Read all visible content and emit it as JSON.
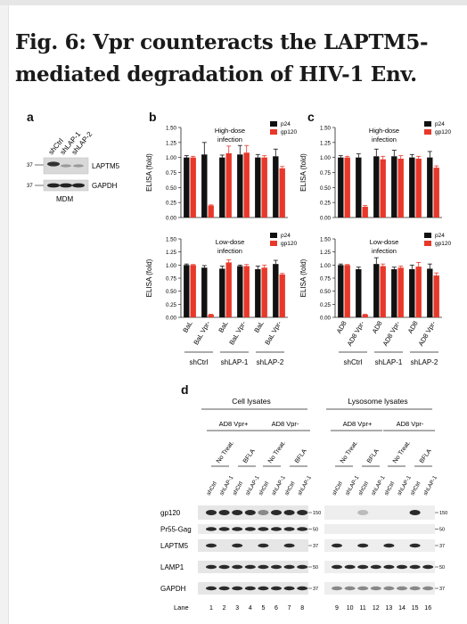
{
  "title": "Fig. 6: Vpr counteracts the LAPTM5-mediated degradation of HIV-1 Env.",
  "panels": {
    "a": {
      "label": "a",
      "lanes": [
        "shCtrl",
        "shLAP-1",
        "shLAP-2"
      ],
      "marker": "37",
      "rows": [
        "LAPTM5",
        "GAPDH"
      ],
      "cell": "MDM"
    },
    "b": {
      "label": "b"
    },
    "c": {
      "label": "c"
    },
    "d": {
      "label": "d",
      "groups": [
        "Cell lysates",
        "Lysosome lysates"
      ],
      "conditions": [
        "AD8 Vpr+",
        "AD8 Vpr-",
        "AD8 Vpr+",
        "AD8 Vpr-"
      ],
      "treatments": [
        "No Treat.",
        "BFLA",
        "No Treat.",
        "BFLA",
        "No Treat.",
        "BFLA",
        "No Treat.",
        "BFLA"
      ],
      "lanes": [
        "shCtrl",
        "shLAP-1",
        "shCtrl",
        "shLAP-1",
        "shCtrl",
        "shLAP-1",
        "shCtrl",
        "shLAP-1",
        "shCtrl",
        "shLAP-1",
        "shCtrl",
        "shLAP-1",
        "shCtrl",
        "shLAP-1",
        "shCtrl",
        "shLAP-1"
      ],
      "rows": [
        "gp120",
        "Pr55-Gag",
        "LAPTM5",
        "LAMP1",
        "GAPDH"
      ],
      "markers": [
        "150",
        "50",
        "37",
        "50",
        "37"
      ],
      "lane_label": "Lane",
      "lane_numbers": [
        "1",
        "2",
        "3",
        "4",
        "5",
        "6",
        "7",
        "8",
        "9",
        "10",
        "11",
        "12",
        "13",
        "14",
        "15",
        "16"
      ]
    }
  },
  "chart_data": [
    {
      "type": "bar",
      "panel": "b",
      "annotation": "High-dose infection",
      "categories": [
        "BaL",
        "BaL Vpr-",
        "BaL",
        "BaL Vpr-",
        "BaL",
        "BaL Vpr-"
      ],
      "groups": [
        "shCtrl",
        "shLAP-1",
        "shLAP-2"
      ],
      "ylabel": "ELISA (fold)",
      "ylim": [
        0,
        1.5
      ],
      "yticks": [
        "0.00",
        "0.25",
        "0.50",
        "0.75",
        "1.00",
        "1.25",
        "1.50"
      ],
      "series": [
        {
          "name": "p24",
          "color": "#111111",
          "values": [
            1.0,
            1.05,
            1.0,
            1.05,
            1.0,
            1.02
          ],
          "errors": [
            0.03,
            0.2,
            0.04,
            0.15,
            0.05,
            0.12
          ]
        },
        {
          "name": "gp120",
          "color": "#e8382a",
          "values": [
            1.0,
            0.2,
            1.07,
            1.08,
            1.0,
            0.82
          ],
          "errors": [
            0.02,
            0.01,
            0.12,
            0.12,
            0.03,
            0.03
          ]
        }
      ]
    },
    {
      "type": "bar",
      "panel": "b",
      "annotation": "Low-dose infection",
      "categories": [
        "BaL",
        "BaL Vpr-",
        "BaL",
        "BaL Vpr-",
        "BaL",
        "BaL Vpr-"
      ],
      "groups": [
        "shCtrl",
        "shLAP-1",
        "shLAP-2"
      ],
      "ylabel": "ELISA (fold)",
      "ylim": [
        0,
        1.5
      ],
      "yticks": [
        "0.00",
        "0.25",
        "0.50",
        "0.75",
        "1.00",
        "1.25",
        "1.50"
      ],
      "series": [
        {
          "name": "p24",
          "color": "#111111",
          "values": [
            1.0,
            0.95,
            0.93,
            0.98,
            0.92,
            1.02
          ],
          "errors": [
            0.02,
            0.04,
            0.05,
            0.02,
            0.06,
            0.07
          ]
        },
        {
          "name": "gp120",
          "color": "#e8382a",
          "values": [
            1.0,
            0.05,
            1.05,
            0.98,
            0.95,
            0.82
          ],
          "errors": [
            0.01,
            0.01,
            0.05,
            0.03,
            0.05,
            0.02
          ]
        }
      ]
    },
    {
      "type": "bar",
      "panel": "c",
      "annotation": "High-dose infection",
      "categories": [
        "AD8",
        "AD8 Vpr-",
        "AD8",
        "AD8 Vpr-",
        "AD8",
        "AD8 Vpr-"
      ],
      "groups": [
        "shCtrl",
        "shLAP-1",
        "shLAP-2"
      ],
      "ylabel": "ELISA (fold)",
      "ylim": [
        0,
        1.5
      ],
      "yticks": [
        "0.00",
        "0.25",
        "0.50",
        "0.75",
        "1.00",
        "1.25",
        "1.50"
      ],
      "series": [
        {
          "name": "p24",
          "color": "#111111",
          "values": [
            1.0,
            1.0,
            1.02,
            1.02,
            1.0,
            1.0
          ],
          "errors": [
            0.03,
            0.06,
            0.12,
            0.1,
            0.05,
            0.1
          ]
        },
        {
          "name": "gp120",
          "color": "#e8382a",
          "values": [
            1.0,
            0.18,
            0.97,
            0.98,
            0.98,
            0.83
          ],
          "errors": [
            0.02,
            0.02,
            0.05,
            0.05,
            0.04,
            0.03
          ]
        }
      ]
    },
    {
      "type": "bar",
      "panel": "c",
      "annotation": "Low-dose infection",
      "categories": [
        "AD8",
        "AD8 Vpr-",
        "AD8",
        "AD8 Vpr-",
        "AD8",
        "AD8 Vpr-"
      ],
      "groups": [
        "shCtrl",
        "shLAP-1",
        "shLAP-2"
      ],
      "ylabel": "ELISA (fold)",
      "ylim": [
        0,
        1.5
      ],
      "yticks": [
        "0.00",
        "0.25",
        "0.50",
        "0.75",
        "1.00",
        "1.25",
        "1.50"
      ],
      "series": [
        {
          "name": "p24",
          "color": "#111111",
          "values": [
            1.0,
            0.92,
            1.02,
            0.92,
            0.92,
            0.93
          ],
          "errors": [
            0.02,
            0.04,
            0.12,
            0.04,
            0.08,
            0.09
          ]
        },
        {
          "name": "gp120",
          "color": "#e8382a",
          "values": [
            1.0,
            0.05,
            0.98,
            0.95,
            0.97,
            0.8
          ],
          "errors": [
            0.01,
            0.01,
            0.04,
            0.03,
            0.08,
            0.05
          ]
        }
      ]
    }
  ]
}
